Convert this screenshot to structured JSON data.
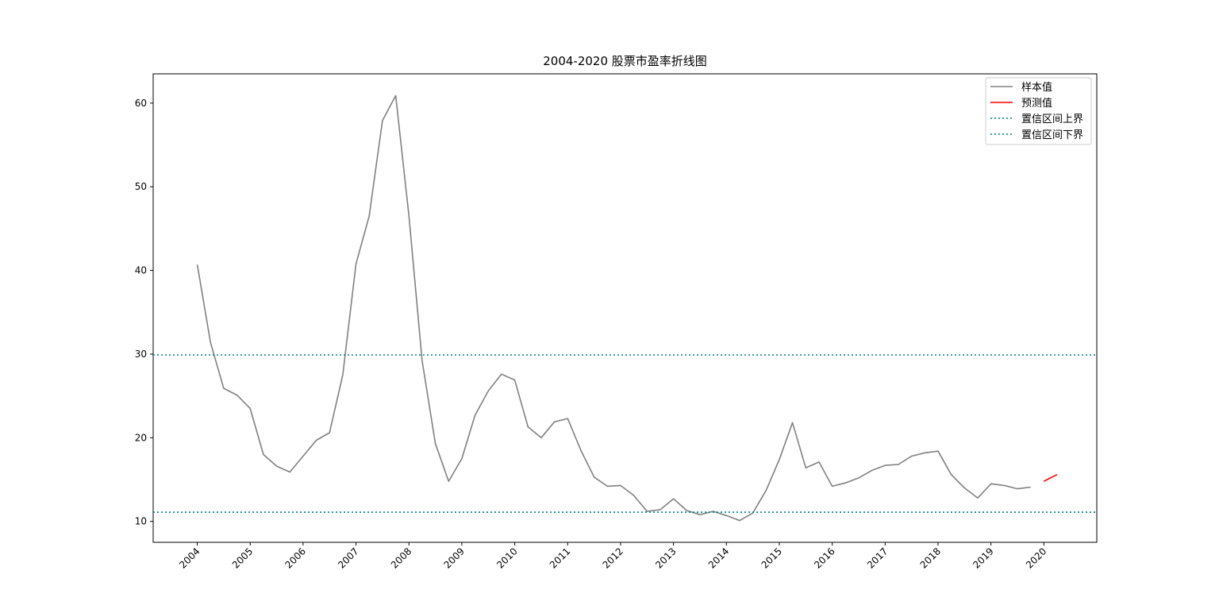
{
  "chart_data": {
    "type": "line",
    "title": "2004-2020 股票市盈率折线图",
    "xlabel": "",
    "ylabel": "",
    "x_ticks": [
      "2004",
      "2005",
      "2006",
      "2007",
      "2008",
      "2009",
      "2010",
      "2011",
      "2012",
      "2013",
      "2014",
      "2015",
      "2016",
      "2017",
      "2018",
      "2019",
      "2020"
    ],
    "y_ticks": [
      "10",
      "20",
      "30",
      "40",
      "50",
      "60"
    ],
    "xlim": [
      "2003-03",
      "2021-01"
    ],
    "ylim": [
      7.5,
      63.5
    ],
    "grid": false,
    "legend_position": "top-right",
    "series": [
      {
        "name": "样本值",
        "color": "#808080",
        "style": "solid",
        "x": [
          "2004-01",
          "2004-04",
          "2004-07",
          "2004-10",
          "2005-01",
          "2005-04",
          "2005-07",
          "2005-10",
          "2006-01",
          "2006-04",
          "2006-07",
          "2006-10",
          "2007-01",
          "2007-04",
          "2007-07",
          "2007-10",
          "2008-01",
          "2008-04",
          "2008-07",
          "2008-10",
          "2009-01",
          "2009-04",
          "2009-07",
          "2009-10",
          "2010-01",
          "2010-04",
          "2010-07",
          "2010-10",
          "2011-01",
          "2011-04",
          "2011-07",
          "2011-10",
          "2012-01",
          "2012-04",
          "2012-07",
          "2012-10",
          "2013-01",
          "2013-04",
          "2013-07",
          "2013-10",
          "2014-01",
          "2014-04",
          "2014-07",
          "2014-10",
          "2015-01",
          "2015-04",
          "2015-07",
          "2015-10",
          "2016-01",
          "2016-04",
          "2016-07",
          "2016-10",
          "2017-01",
          "2017-04",
          "2017-07",
          "2017-10",
          "2018-01",
          "2018-04",
          "2018-07",
          "2018-10",
          "2019-01",
          "2019-04",
          "2019-07",
          "2019-10"
        ],
        "values": [
          40.7,
          31.4,
          25.9,
          25.1,
          23.5,
          18.0,
          16.6,
          15.9,
          17.8,
          19.7,
          20.6,
          27.5,
          40.8,
          46.5,
          57.9,
          60.9,
          46.5,
          29.2,
          19.3,
          14.8,
          17.5,
          22.7,
          25.6,
          27.6,
          26.9,
          21.3,
          20.0,
          21.9,
          22.3,
          18.5,
          15.3,
          14.2,
          14.3,
          13.1,
          11.2,
          11.4,
          12.7,
          11.3,
          10.8,
          11.2,
          10.7,
          10.1,
          11.0,
          13.7,
          17.4,
          21.8,
          16.4,
          17.1,
          14.2,
          14.6,
          15.2,
          16.1,
          16.7,
          16.8,
          17.8,
          18.2,
          18.4,
          15.6,
          14.0,
          12.8,
          14.5,
          14.3,
          13.9,
          14.1
        ]
      },
      {
        "name": "预测值",
        "color": "#ff0000",
        "style": "solid",
        "x": [
          "2020-01",
          "2020-04"
        ],
        "values": [
          14.8,
          15.6
        ]
      },
      {
        "name": "置信区间上界",
        "color": "#008080",
        "style": "dotted",
        "value": 29.9
      },
      {
        "name": "置信区间下界",
        "color": "#008080",
        "style": "dotted",
        "value": 11.1
      }
    ]
  }
}
